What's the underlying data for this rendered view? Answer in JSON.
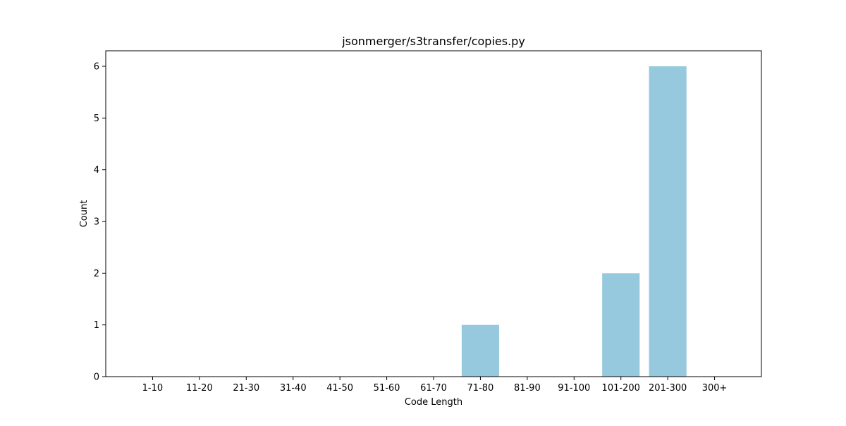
{
  "chart_data": {
    "type": "bar",
    "title": "jsonmerger/s3transfer/copies.py",
    "xlabel": "Code Length",
    "ylabel": "Count",
    "categories": [
      "1-10",
      "11-20",
      "21-30",
      "31-40",
      "41-50",
      "51-60",
      "61-70",
      "71-80",
      "81-90",
      "91-100",
      "101-200",
      "201-300",
      "300+"
    ],
    "values": [
      0,
      0,
      0,
      0,
      0,
      0,
      0,
      1,
      0,
      0,
      2,
      6,
      0
    ],
    "ylim": [
      0,
      6.3
    ],
    "yticks": [
      "0",
      "1",
      "2",
      "3",
      "4",
      "5",
      "6"
    ],
    "grid": false,
    "legend": "none",
    "bar_color": "#96c9dd"
  }
}
